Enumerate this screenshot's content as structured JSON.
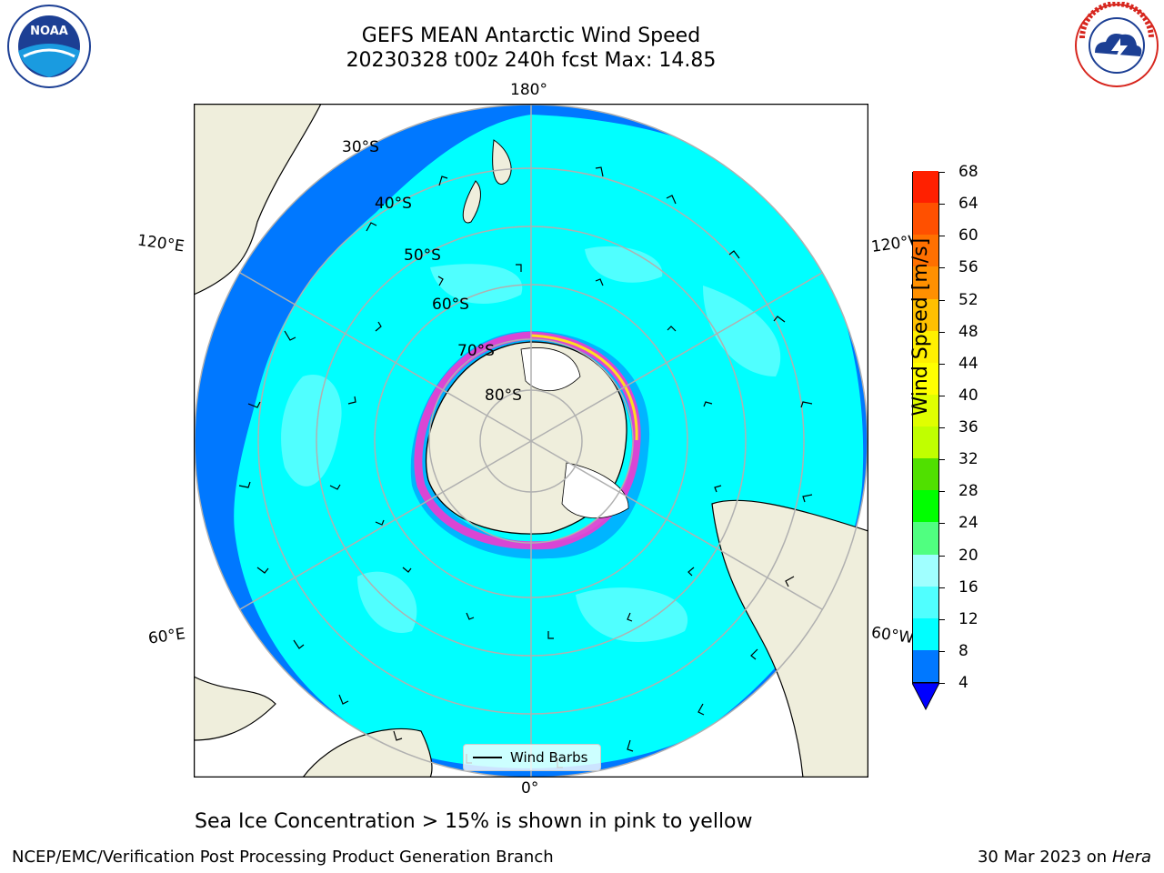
{
  "title_line1": "GEFS MEAN Antarctic Wind Speed",
  "title_line2": "20230328 t00z 240h fcst   Max: 14.85",
  "logos": {
    "left": "noaa-logo",
    "right": "national-weather-service-logo"
  },
  "map": {
    "projection": "south-polar-stereographic",
    "longitude_labels": {
      "top": "180°",
      "bottom": "0°",
      "upper_left": "120°E",
      "upper_right": "120°W",
      "lower_left": "60°E",
      "lower_right": "60°W"
    },
    "latitude_labels": [
      "30°S",
      "40°S",
      "50°S",
      "60°S",
      "70°S",
      "80°S"
    ],
    "legend_label": "Wind Barbs",
    "colors": {
      "ocean_4_8": "#0078ff",
      "ocean_8_12": "#00ffff",
      "ocean_12_16": "#50ffff",
      "land": "#efeedc",
      "sea_ice": "#ff33cc",
      "ice_shelf": "#ffffff"
    }
  },
  "colorbar": {
    "title": "Wind Speed [m/s]",
    "ticks": [
      "4",
      "8",
      "12",
      "16",
      "20",
      "24",
      "28",
      "32",
      "36",
      "40",
      "44",
      "48",
      "52",
      "56",
      "60",
      "64",
      "68"
    ],
    "colors": [
      "#0078ff",
      "#00ffff",
      "#50ffff",
      "#a0ffff",
      "#50ff80",
      "#00ff00",
      "#50e000",
      "#c0ff00",
      "#e0ff00",
      "#ffff00",
      "#fff000",
      "#ffc000",
      "#ff9000",
      "#ff7000",
      "#ff5000",
      "#ff2000"
    ],
    "extend_color": "#0000ff"
  },
  "caption": "Sea Ice Concentration > 15% is shown in pink to yellow",
  "footer_left": "NCEP/EMC/Verification Post Processing Product Generation Branch",
  "footer_date": "30 Mar 2023 on",
  "footer_machine": "Hera"
}
